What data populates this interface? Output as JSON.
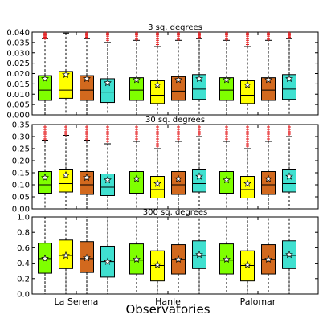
{
  "chart_data": {
    "type": "box",
    "xlabel": "Observatories",
    "categories": [
      "La Serena",
      "Hanle",
      "Palomar"
    ],
    "series_colors": [
      "#7fff00",
      "#ffff00",
      "#d2691e",
      "#40e0d0"
    ],
    "panels": [
      {
        "title": "3 sq. degrees",
        "ylim": [
          0,
          0.04
        ],
        "yticks": [
          0.0,
          0.005,
          0.01,
          0.015,
          0.02,
          0.025,
          0.03,
          0.035,
          0.04
        ],
        "ytick_labels": [
          "0.000",
          "0.005",
          "0.010",
          "0.015",
          "0.020",
          "0.025",
          "0.030",
          "0.035",
          "0.040"
        ],
        "groups": [
          {
            "category": "La Serena",
            "boxes": [
              {
                "whislo": 0.0,
                "q1": 0.007,
                "med": 0.012,
                "q3": 0.019,
                "whishi": 0.037,
                "mean": 0.0175,
                "fliers": [
                  0.037,
                  0.0375,
                  0.038,
                  0.0385,
                  0.039,
                  0.0395
                ]
              },
              {
                "whislo": 0.0,
                "q1": 0.008,
                "med": 0.012,
                "q3": 0.021,
                "whishi": 0.0395,
                "mean": 0.0195,
                "fliers": []
              },
              {
                "whislo": 0.0,
                "q1": 0.007,
                "med": 0.012,
                "q3": 0.019,
                "whishi": 0.037,
                "mean": 0.0175,
                "fliers": [
                  0.0375,
                  0.038,
                  0.0385,
                  0.039,
                  0.0395
                ]
              },
              {
                "whislo": 0.0,
                "q1": 0.006,
                "med": 0.011,
                "q3": 0.0175,
                "whishi": 0.035,
                "mean": 0.0155,
                "fliers": [
                  0.036,
                  0.037,
                  0.038,
                  0.039,
                  0.0395
                ]
              }
            ]
          },
          {
            "category": "Hanle",
            "boxes": [
              {
                "whislo": 0.0,
                "q1": 0.007,
                "med": 0.012,
                "q3": 0.018,
                "whishi": 0.036,
                "mean": 0.017,
                "fliers": [
                  0.0365,
                  0.037,
                  0.038,
                  0.039,
                  0.0395
                ]
              },
              {
                "whislo": 0.0,
                "q1": 0.0055,
                "med": 0.0095,
                "q3": 0.0165,
                "whishi": 0.033,
                "mean": 0.0145,
                "fliers": [
                  0.034,
                  0.035,
                  0.036,
                  0.037,
                  0.038,
                  0.039,
                  0.0395
                ]
              },
              {
                "whislo": 0.0,
                "q1": 0.007,
                "med": 0.0115,
                "q3": 0.0185,
                "whishi": 0.036,
                "mean": 0.017,
                "fliers": [
                  0.0365,
                  0.037,
                  0.038,
                  0.039,
                  0.0395
                ]
              },
              {
                "whislo": 0.0,
                "q1": 0.0075,
                "med": 0.0125,
                "q3": 0.0195,
                "whishi": 0.037,
                "mean": 0.0175,
                "fliers": [
                  0.0375,
                  0.038,
                  0.0385,
                  0.039,
                  0.0395
                ]
              }
            ]
          },
          {
            "category": "Palomar",
            "boxes": [
              {
                "whislo": 0.0,
                "q1": 0.007,
                "med": 0.012,
                "q3": 0.018,
                "whishi": 0.036,
                "mean": 0.017,
                "fliers": [
                  0.0365,
                  0.037,
                  0.038,
                  0.039,
                  0.0395
                ]
              },
              {
                "whislo": 0.0,
                "q1": 0.0055,
                "med": 0.0095,
                "q3": 0.0165,
                "whishi": 0.033,
                "mean": 0.0145,
                "fliers": [
                  0.034,
                  0.035,
                  0.036,
                  0.037,
                  0.038,
                  0.039,
                  0.0395
                ]
              },
              {
                "whislo": 0.0,
                "q1": 0.007,
                "med": 0.012,
                "q3": 0.018,
                "whishi": 0.036,
                "mean": 0.017,
                "fliers": [
                  0.0365,
                  0.037,
                  0.038,
                  0.039,
                  0.0395
                ]
              },
              {
                "whislo": 0.0,
                "q1": 0.0075,
                "med": 0.0125,
                "q3": 0.0195,
                "whishi": 0.037,
                "mean": 0.0175,
                "fliers": [
                  0.0375,
                  0.038,
                  0.0385,
                  0.039,
                  0.0395
                ]
              }
            ]
          }
        ]
      },
      {
        "title": "30 sq. degrees",
        "ylim": [
          0,
          0.35
        ],
        "yticks": [
          0.0,
          0.05,
          0.1,
          0.15,
          0.2,
          0.25,
          0.3,
          0.35
        ],
        "ytick_labels": [
          "0.00",
          "0.05",
          "0.10",
          "0.15",
          "0.20",
          "0.25",
          "0.30",
          "0.35"
        ],
        "groups": [
          {
            "category": "La Serena",
            "boxes": [
              {
                "whislo": 0.0,
                "q1": 0.065,
                "med": 0.1,
                "q3": 0.155,
                "whishi": 0.285,
                "mean": 0.13,
                "fliers": [
                  0.29,
                  0.3,
                  0.31,
                  0.32,
                  0.33,
                  0.34
                ]
              },
              {
                "whislo": 0.0,
                "q1": 0.07,
                "med": 0.105,
                "q3": 0.165,
                "whishi": 0.305,
                "mean": 0.14,
                "fliers": [
                  0.31,
                  0.32,
                  0.33,
                  0.34
                ]
              },
              {
                "whislo": 0.0,
                "q1": 0.06,
                "med": 0.1,
                "q3": 0.155,
                "whishi": 0.285,
                "mean": 0.13,
                "fliers": [
                  0.29,
                  0.3,
                  0.31,
                  0.32,
                  0.33,
                  0.34
                ]
              },
              {
                "whislo": 0.0,
                "q1": 0.055,
                "med": 0.09,
                "q3": 0.145,
                "whishi": 0.27,
                "mean": 0.12,
                "fliers": [
                  0.28,
                  0.29,
                  0.3,
                  0.31,
                  0.32,
                  0.33,
                  0.34
                ]
              }
            ]
          },
          {
            "category": "Hanle",
            "boxes": [
              {
                "whislo": 0.0,
                "q1": 0.065,
                "med": 0.095,
                "q3": 0.155,
                "whishi": 0.28,
                "mean": 0.125,
                "fliers": [
                  0.29,
                  0.3,
                  0.31,
                  0.32,
                  0.33,
                  0.34
                ]
              },
              {
                "whislo": 0.0,
                "q1": 0.045,
                "med": 0.08,
                "q3": 0.135,
                "whishi": 0.25,
                "mean": 0.105,
                "fliers": [
                  0.26,
                  0.27,
                  0.28,
                  0.29,
                  0.3,
                  0.31,
                  0.32,
                  0.33,
                  0.34
                ]
              },
              {
                "whislo": 0.0,
                "q1": 0.06,
                "med": 0.1,
                "q3": 0.155,
                "whishi": 0.28,
                "mean": 0.125,
                "fliers": [
                  0.29,
                  0.3,
                  0.31,
                  0.32,
                  0.33,
                  0.34
                ]
              },
              {
                "whislo": 0.0,
                "q1": 0.07,
                "med": 0.105,
                "q3": 0.165,
                "whishi": 0.3,
                "mean": 0.135,
                "fliers": [
                  0.31,
                  0.32,
                  0.33,
                  0.34
                ]
              }
            ]
          },
          {
            "category": "Palomar",
            "boxes": [
              {
                "whislo": 0.0,
                "q1": 0.065,
                "med": 0.095,
                "q3": 0.155,
                "whishi": 0.28,
                "mean": 0.12,
                "fliers": [
                  0.29,
                  0.3,
                  0.31,
                  0.32,
                  0.33,
                  0.34
                ]
              },
              {
                "whislo": 0.0,
                "q1": 0.045,
                "med": 0.08,
                "q3": 0.135,
                "whishi": 0.25,
                "mean": 0.105,
                "fliers": [
                  0.26,
                  0.27,
                  0.28,
                  0.29,
                  0.3,
                  0.31,
                  0.32,
                  0.33,
                  0.34
                ]
              },
              {
                "whislo": 0.0,
                "q1": 0.06,
                "med": 0.1,
                "q3": 0.155,
                "whishi": 0.28,
                "mean": 0.125,
                "fliers": [
                  0.29,
                  0.3,
                  0.31,
                  0.32,
                  0.33,
                  0.34
                ]
              },
              {
                "whislo": 0.0,
                "q1": 0.07,
                "med": 0.105,
                "q3": 0.165,
                "whishi": 0.3,
                "mean": 0.135,
                "fliers": [
                  0.31,
                  0.32,
                  0.33,
                  0.34
                ]
              }
            ]
          }
        ]
      },
      {
        "title": "300 sq. degrees",
        "ylim": [
          0,
          1.0
        ],
        "yticks": [
          0.0,
          0.2,
          0.4,
          0.6,
          0.8,
          1.0
        ],
        "ytick_labels": [
          "0.0",
          "0.2",
          "0.4",
          "0.6",
          "0.8",
          "1.0"
        ],
        "groups": [
          {
            "category": "La Serena",
            "boxes": [
              {
                "whislo": 0.0,
                "q1": 0.27,
                "med": 0.46,
                "q3": 0.66,
                "whishi": 1.0,
                "mean": 0.46,
                "fliers": []
              },
              {
                "whislo": 0.0,
                "q1": 0.33,
                "med": 0.5,
                "q3": 0.7,
                "whishi": 1.0,
                "mean": 0.5,
                "fliers": []
              },
              {
                "whislo": 0.0,
                "q1": 0.28,
                "med": 0.46,
                "q3": 0.68,
                "whishi": 1.0,
                "mean": 0.47,
                "fliers": []
              },
              {
                "whislo": 0.0,
                "q1": 0.22,
                "med": 0.42,
                "q3": 0.62,
                "whishi": 1.0,
                "mean": 0.42,
                "fliers": []
              }
            ]
          },
          {
            "category": "Hanle",
            "boxes": [
              {
                "whislo": 0.0,
                "q1": 0.26,
                "med": 0.44,
                "q3": 0.65,
                "whishi": 1.0,
                "mean": 0.45,
                "fliers": []
              },
              {
                "whislo": 0.0,
                "q1": 0.17,
                "med": 0.37,
                "q3": 0.56,
                "whishi": 1.0,
                "mean": 0.38,
                "fliers": []
              },
              {
                "whislo": 0.0,
                "q1": 0.26,
                "med": 0.45,
                "q3": 0.64,
                "whishi": 1.0,
                "mean": 0.45,
                "fliers": []
              },
              {
                "whislo": 0.0,
                "q1": 0.33,
                "med": 0.5,
                "q3": 0.69,
                "whishi": 1.0,
                "mean": 0.51,
                "fliers": []
              }
            ]
          },
          {
            "category": "Palomar",
            "boxes": [
              {
                "whislo": 0.0,
                "q1": 0.26,
                "med": 0.44,
                "q3": 0.65,
                "whishi": 1.0,
                "mean": 0.45,
                "fliers": []
              },
              {
                "whislo": 0.0,
                "q1": 0.17,
                "med": 0.37,
                "q3": 0.56,
                "whishi": 1.0,
                "mean": 0.38,
                "fliers": []
              },
              {
                "whislo": 0.0,
                "q1": 0.26,
                "med": 0.45,
                "q3": 0.64,
                "whishi": 1.0,
                "mean": 0.45,
                "fliers": []
              },
              {
                "whislo": 0.0,
                "q1": 0.33,
                "med": 0.5,
                "q3": 0.69,
                "whishi": 1.0,
                "mean": 0.51,
                "fliers": []
              }
            ]
          }
        ]
      }
    ]
  }
}
